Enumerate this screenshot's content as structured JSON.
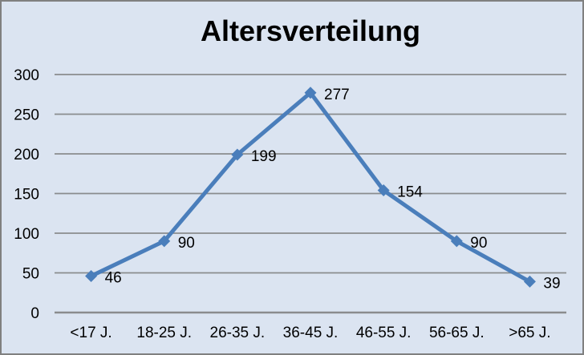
{
  "window": {
    "background_color": "#DBE4F1",
    "border_color": "#808080"
  },
  "chart_data": {
    "type": "line",
    "title": "Altersverteilung",
    "categories": [
      "<17 J.",
      "18-25 J.",
      "26-35 J.",
      "36-45 J.",
      "46-55 J.",
      "56-65 J.",
      ">65 J."
    ],
    "series": [
      {
        "name": "Altersverteilung",
        "values": [
          46,
          90,
          199,
          277,
          154,
          90,
          39
        ]
      }
    ],
    "data_labels": [
      "46",
      "90",
      "199",
      "277",
      "154",
      "90",
      "39"
    ],
    "xlabel": "",
    "ylabel": "",
    "ylim": [
      0,
      300
    ],
    "yticks": [
      0,
      50,
      100,
      150,
      200,
      250,
      300
    ],
    "grid": true,
    "legend_position": "none",
    "marker": "diamond",
    "line_color": "#4A7EBB",
    "gridline_color": "#8A8C8E",
    "axis_line_color": "#8A8C8E",
    "text_color": "#000000",
    "title_color": "#000000"
  }
}
